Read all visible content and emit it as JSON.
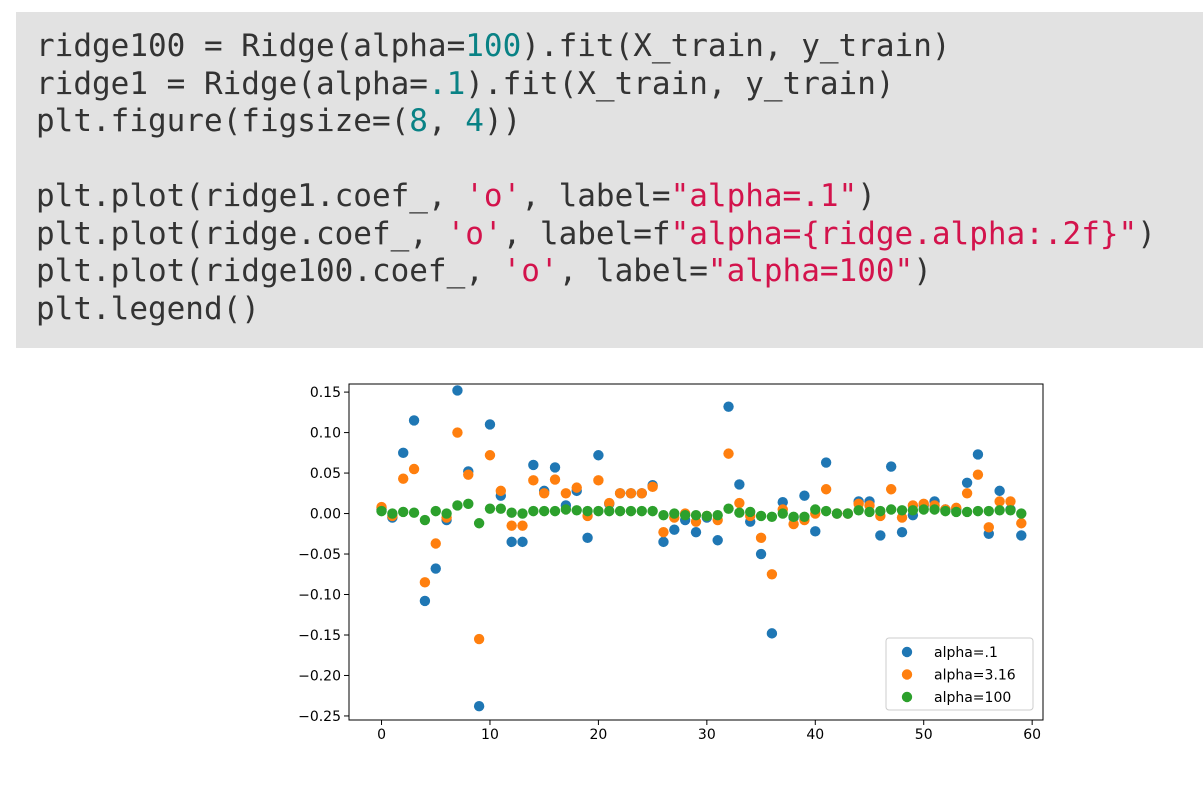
{
  "code": {
    "lines": [
      [
        {
          "t": "ridge100 = Ridge(alpha="
        },
        {
          "t": "100",
          "c": "num"
        },
        {
          "t": ").fit(X_train, y_train)"
        }
      ],
      [
        {
          "t": "ridge1 = Ridge(alpha="
        },
        {
          "t": ".1",
          "c": "num"
        },
        {
          "t": ").fit(X_train, y_train)"
        }
      ],
      [
        {
          "t": "plt.figure(figsize=("
        },
        {
          "t": "8",
          "c": "num"
        },
        {
          "t": ", "
        },
        {
          "t": "4",
          "c": "num"
        },
        {
          "t": "))"
        }
      ],
      [],
      [
        {
          "t": "plt.plot(ridge1.coef_, "
        },
        {
          "t": "'o'",
          "c": "str"
        },
        {
          "t": ", label="
        },
        {
          "t": "\"alpha=.1\"",
          "c": "str"
        },
        {
          "t": ")"
        }
      ],
      [
        {
          "t": "plt.plot(ridge.coef_, "
        },
        {
          "t": "'o'",
          "c": "str"
        },
        {
          "t": ", label=f"
        },
        {
          "t": "\"alpha={ridge.alpha:.2f}\"",
          "c": "str"
        },
        {
          "t": ")"
        }
      ],
      [
        {
          "t": "plt.plot(ridge100.coef_, "
        },
        {
          "t": "'o'",
          "c": "str"
        },
        {
          "t": ", label="
        },
        {
          "t": "\"alpha=100\"",
          "c": "str"
        },
        {
          "t": ")"
        }
      ],
      [
        {
          "t": "plt.legend()"
        }
      ]
    ]
  },
  "chart_data": {
    "type": "scatter",
    "xlim": [
      -3,
      61
    ],
    "ylim": [
      -0.255,
      0.16
    ],
    "xticks": [
      0,
      10,
      20,
      30,
      40,
      50,
      60
    ],
    "xtick_labels": [
      "0",
      "10",
      "20",
      "30",
      "40",
      "50",
      "60"
    ],
    "yticks": [
      0.15,
      0.1,
      0.05,
      0.0,
      -0.05,
      -0.1,
      -0.15,
      -0.2,
      -0.25
    ],
    "ytick_labels": [
      "0.15",
      "0.10",
      "0.05",
      "0.00",
      "−0.05",
      "−0.10",
      "−0.15",
      "−0.20",
      "−0.25"
    ],
    "grid": false,
    "legend_position": "lower right",
    "series": [
      {
        "name": "alpha=.1",
        "color": "#1f77b4",
        "values": [
          0.005,
          -0.005,
          0.075,
          0.115,
          -0.108,
          -0.068,
          -0.008,
          0.152,
          0.052,
          -0.238,
          0.11,
          0.022,
          -0.035,
          -0.035,
          0.06,
          0.028,
          0.057,
          0.01,
          0.028,
          -0.03,
          0.072,
          0.012,
          0.025,
          0.025,
          0.025,
          0.035,
          -0.035,
          -0.02,
          -0.008,
          -0.023,
          -0.005,
          -0.033,
          0.132,
          0.036,
          -0.01,
          -0.05,
          -0.148,
          0.014,
          -0.005,
          0.022,
          -0.022,
          0.063,
          0.0,
          0.0,
          0.015,
          0.015,
          -0.027,
          0.058,
          -0.023,
          -0.002,
          0.01,
          0.015,
          0.005,
          0.005,
          0.038,
          0.073,
          -0.025,
          0.028,
          0.005,
          -0.027
        ]
      },
      {
        "name": "alpha=3.16",
        "color": "#ff7f0e",
        "values": [
          0.008,
          -0.003,
          0.043,
          0.055,
          -0.085,
          -0.037,
          -0.005,
          0.1,
          0.048,
          -0.155,
          0.072,
          0.028,
          -0.015,
          -0.015,
          0.041,
          0.025,
          0.042,
          0.025,
          0.032,
          -0.003,
          0.041,
          0.013,
          0.025,
          0.025,
          0.025,
          0.033,
          -0.023,
          -0.005,
          0.0,
          -0.01,
          -0.003,
          -0.008,
          0.074,
          0.013,
          -0.003,
          -0.03,
          -0.075,
          0.005,
          -0.013,
          -0.008,
          0.0,
          0.03,
          0.0,
          0.0,
          0.012,
          0.01,
          -0.003,
          0.03,
          -0.005,
          0.01,
          0.012,
          0.01,
          0.005,
          0.007,
          0.025,
          0.048,
          -0.017,
          0.015,
          0.015,
          -0.012
        ]
      },
      {
        "name": "alpha=100",
        "color": "#2ca02c",
        "values": [
          0.003,
          0.0,
          0.002,
          0.001,
          -0.008,
          0.003,
          0.0,
          0.01,
          0.012,
          -0.012,
          0.006,
          0.006,
          0.001,
          0.0,
          0.003,
          0.003,
          0.003,
          0.005,
          0.004,
          0.003,
          0.003,
          0.003,
          0.003,
          0.003,
          0.003,
          0.003,
          -0.002,
          0.0,
          -0.002,
          -0.002,
          -0.003,
          -0.002,
          0.006,
          0.001,
          0.002,
          -0.003,
          -0.004,
          0.0,
          -0.004,
          -0.004,
          0.005,
          0.003,
          0.0,
          0.0,
          0.004,
          0.002,
          0.003,
          0.005,
          0.004,
          0.004,
          0.005,
          0.005,
          0.003,
          0.002,
          0.002,
          0.003,
          0.003,
          0.004,
          0.004,
          0.0
        ]
      }
    ]
  }
}
